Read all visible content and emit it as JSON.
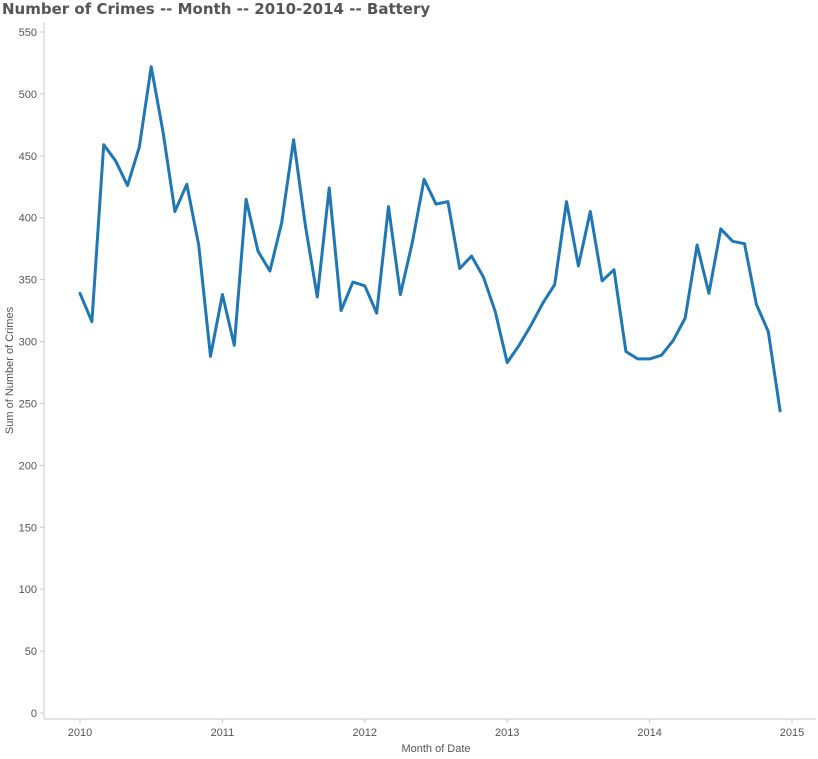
{
  "chart_data": {
    "type": "line",
    "title": "Number of Crimes -- Month -- 2010-2014 -- Battery",
    "xlabel": "Month of Date",
    "ylabel": "Sum of Number of Crimes",
    "ylim": [
      0,
      550
    ],
    "yticks": [
      0,
      50,
      100,
      150,
      200,
      250,
      300,
      350,
      400,
      450,
      500,
      550
    ],
    "xticks": [
      "2010",
      "2011",
      "2012",
      "2013",
      "2014",
      "2015"
    ],
    "xlim": [
      "2010-01",
      "2015-01"
    ],
    "grid": false,
    "line_color": "#1f77b4",
    "series": [
      {
        "x": [
          "2010-01",
          "2010-02",
          "2010-03",
          "2010-04",
          "2010-05",
          "2010-06",
          "2010-07",
          "2010-08",
          "2010-09",
          "2010-10",
          "2010-11",
          "2010-12",
          "2011-01",
          "2011-02",
          "2011-03",
          "2011-04",
          "2011-05",
          "2011-06",
          "2011-07",
          "2011-08",
          "2011-09",
          "2011-10",
          "2011-11",
          "2011-12",
          "2012-01",
          "2012-02",
          "2012-03",
          "2012-04",
          "2012-05",
          "2012-06",
          "2012-07",
          "2012-08",
          "2012-09",
          "2012-10",
          "2012-11",
          "2012-12",
          "2013-01",
          "2013-02",
          "2013-03",
          "2013-04",
          "2013-05",
          "2013-06",
          "2013-07",
          "2013-08",
          "2013-09",
          "2013-10",
          "2013-11",
          "2013-12",
          "2014-01",
          "2014-02",
          "2014-03",
          "2014-04",
          "2014-05",
          "2014-06",
          "2014-07",
          "2014-08",
          "2014-09",
          "2014-10",
          "2014-11",
          "2014-12"
        ],
        "values": [
          339,
          316,
          459,
          446,
          426,
          457,
          522,
          469,
          405,
          427,
          378,
          288,
          338,
          297,
          415,
          373,
          357,
          396,
          463,
          393,
          336,
          424,
          325,
          348,
          345,
          323,
          409,
          338,
          380,
          431,
          411,
          413,
          359,
          369,
          352,
          324,
          283,
          297,
          313,
          331,
          346,
          413,
          361,
          405,
          349,
          358,
          292,
          286,
          286,
          289,
          301,
          319,
          378,
          339,
          391,
          381,
          379,
          330,
          308,
          244
        ]
      }
    ]
  }
}
